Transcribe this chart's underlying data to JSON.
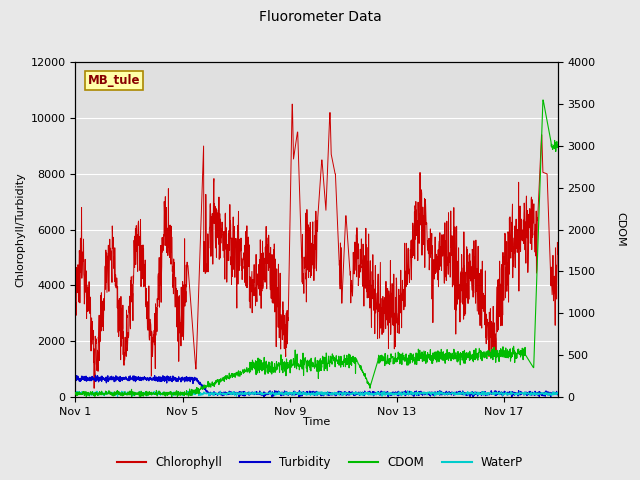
{
  "title": "Fluorometer Data",
  "xlabel": "Time",
  "ylabel_left": "Chlorophyll/Turbidity",
  "ylabel_right": "CDOM",
  "ylim_left": [
    0,
    12000
  ],
  "ylim_right": [
    0,
    4000
  ],
  "yticks_left": [
    0,
    2000,
    4000,
    6000,
    8000,
    10000,
    12000
  ],
  "yticks_right": [
    0,
    500,
    1000,
    1500,
    2000,
    2500,
    3000,
    3500,
    4000
  ],
  "xtick_labels": [
    "Nov 1",
    "Nov 5",
    "Nov 9",
    "Nov 13",
    "Nov 17"
  ],
  "xtick_positions": [
    0,
    4,
    8,
    12,
    16
  ],
  "xlim": [
    0,
    18
  ],
  "fig_bg_color": "#e8e8e8",
  "plot_bg_color": "#e0e0e0",
  "chlorophyll_color": "#cc0000",
  "turbidity_color": "#0000cc",
  "cdom_color": "#00bb00",
  "waterp_color": "#00cccc",
  "label_box_facecolor": "#ffffaa",
  "label_box_edgecolor": "#aa8800",
  "label_text": "MB_tule",
  "label_text_color": "#880000",
  "legend_entries": [
    "Chlorophyll",
    "Turbidity",
    "CDOM",
    "WaterP"
  ],
  "legend_colors": [
    "#cc0000",
    "#0000cc",
    "#00bb00",
    "#00cccc"
  ],
  "grid_color": "#ffffff",
  "n_days": 18,
  "n_points": 1728
}
